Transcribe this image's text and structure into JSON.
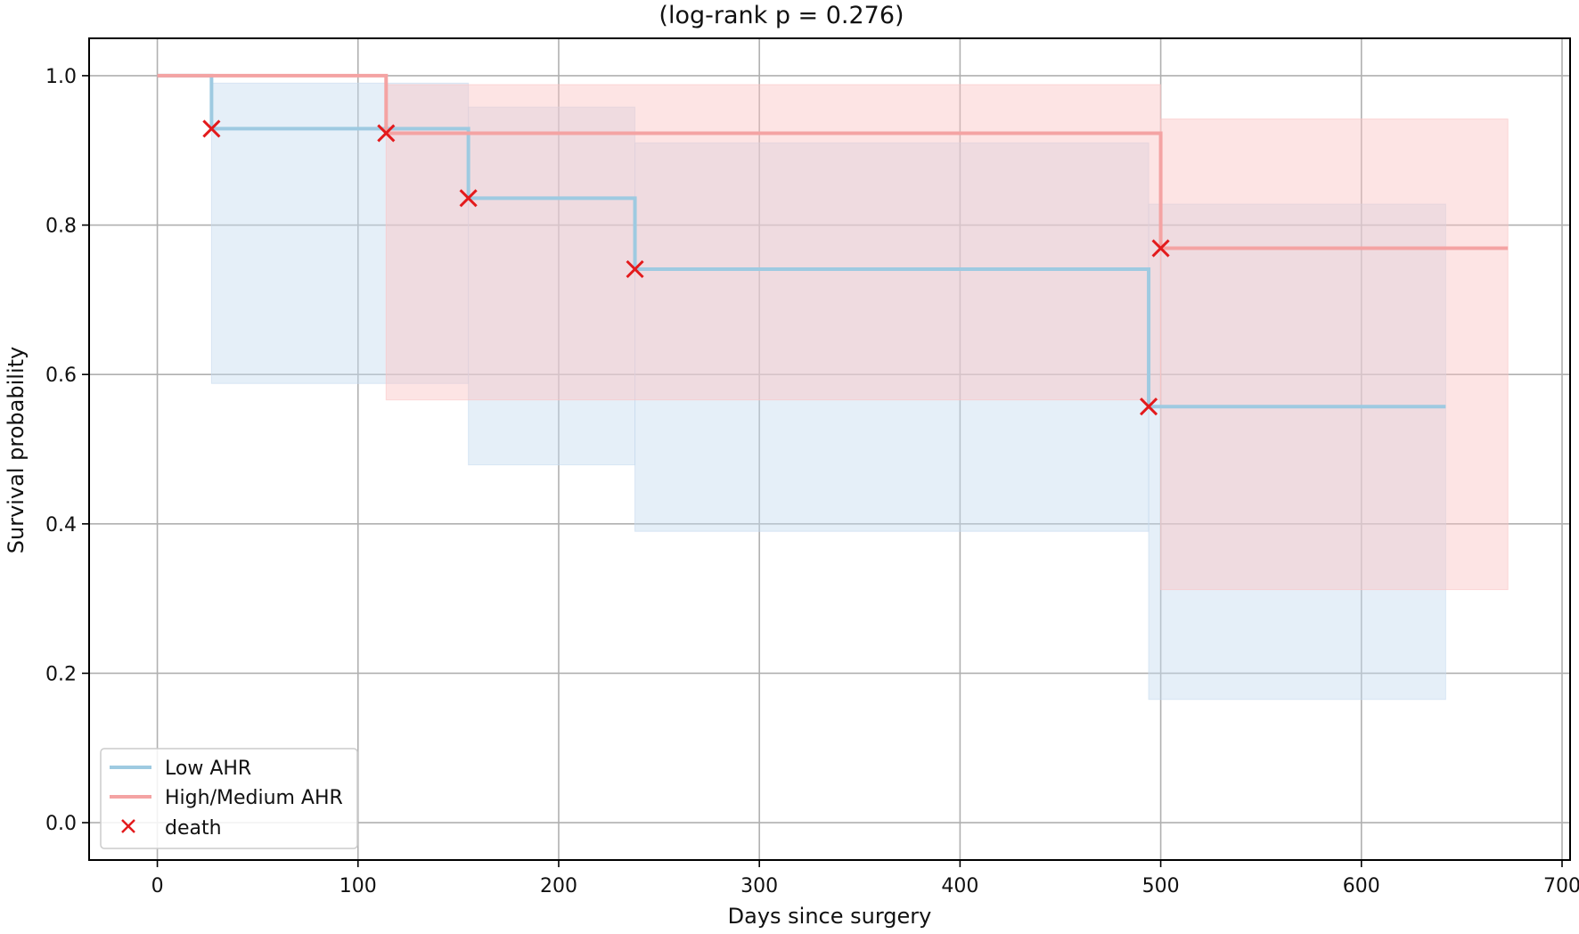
{
  "chart_data": {
    "type": "line",
    "subtype": "kaplan-meier",
    "title": "(log-rank p = 0.276)",
    "xlabel": "Days since surgery",
    "ylabel": "Survival probability",
    "xlim": [
      -34,
      704
    ],
    "ylim": [
      -0.05,
      1.05
    ],
    "xticks": [
      0,
      100,
      200,
      300,
      400,
      500,
      600,
      700
    ],
    "xtick_labels": [
      "0",
      "100",
      "200",
      "300",
      "400",
      "500",
      "600",
      "700"
    ],
    "yticks": [
      0.0,
      0.2,
      0.4,
      0.6,
      0.8,
      1.0
    ],
    "ytick_labels": [
      "0.0",
      "0.2",
      "0.4",
      "0.6",
      "0.8",
      "1.0"
    ],
    "grid": true,
    "legend_position": "lower-left",
    "legend": [
      "Low AHR",
      "High/Medium AHR",
      "death"
    ],
    "series": [
      {
        "name": "Low AHR",
        "color": "#9ecae1",
        "steps": [
          {
            "x": 0,
            "y": 1.0
          },
          {
            "x": 27,
            "y": 0.929
          },
          {
            "x": 155,
            "y": 0.836
          },
          {
            "x": 238,
            "y": 0.741
          },
          {
            "x": 494,
            "y": 0.557
          }
        ],
        "end_x": 642,
        "ci": [
          {
            "x0": 27,
            "x1": 155,
            "lo": 0.588,
            "hi": 0.99
          },
          {
            "x0": 155,
            "x1": 238,
            "lo": 0.479,
            "hi": 0.958
          },
          {
            "x0": 238,
            "x1": 494,
            "lo": 0.39,
            "hi": 0.91
          },
          {
            "x0": 494,
            "x1": 642,
            "lo": 0.165,
            "hi": 0.828
          }
        ],
        "ci_color": "#c6dbef"
      },
      {
        "name": "High/Medium AHR",
        "color": "#f4a3a3",
        "steps": [
          {
            "x": 0,
            "y": 1.0
          },
          {
            "x": 114,
            "y": 0.923
          },
          {
            "x": 500,
            "y": 0.769
          }
        ],
        "end_x": 673,
        "ci": [
          {
            "x0": 114,
            "x1": 500,
            "lo": 0.566,
            "hi": 0.988
          },
          {
            "x0": 500,
            "x1": 673,
            "lo": 0.312,
            "hi": 0.942
          }
        ],
        "ci_color": "#fbc4c4"
      }
    ],
    "events": {
      "name": "death",
      "color": "#e31a1c",
      "points": [
        {
          "x": 27,
          "y": 0.929
        },
        {
          "x": 114,
          "y": 0.923
        },
        {
          "x": 155,
          "y": 0.836
        },
        {
          "x": 238,
          "y": 0.741
        },
        {
          "x": 494,
          "y": 0.557
        },
        {
          "x": 500,
          "y": 0.769
        }
      ]
    }
  }
}
